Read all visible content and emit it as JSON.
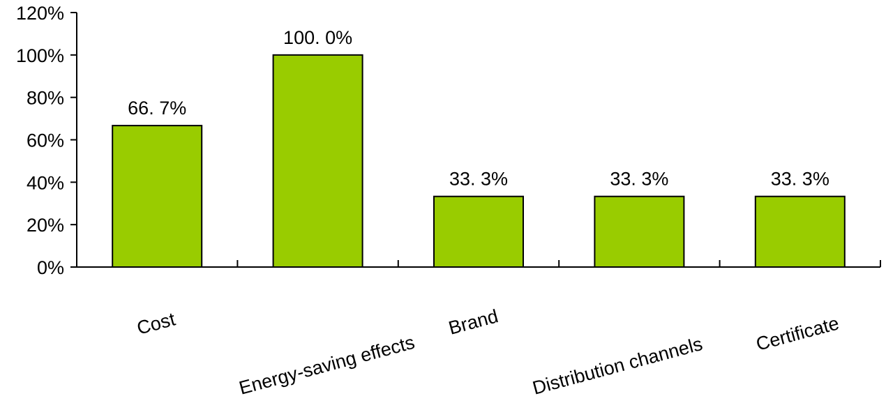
{
  "chart_data": {
    "type": "bar",
    "title": "",
    "xlabel": "",
    "ylabel": "",
    "categories": [
      "Cost",
      "Energy-saving effects",
      "Brand",
      "Distribution channels",
      "Certificate"
    ],
    "values": [
      66.7,
      100.0,
      33.3,
      33.3,
      33.3
    ],
    "data_labels": [
      "66. 7%",
      "100. 0%",
      "33. 3%",
      "33. 3%",
      "33. 3%"
    ],
    "ylim": [
      0,
      120
    ],
    "yticks": [
      0,
      20,
      40,
      60,
      80,
      100,
      120
    ],
    "ytick_labels": [
      "0%",
      "20%",
      "40%",
      "60%",
      "80%",
      "100%",
      "120%"
    ],
    "grid": false,
    "legend": "none",
    "bar_color": "#99cc00",
    "bar_edge_color": "#000000"
  }
}
